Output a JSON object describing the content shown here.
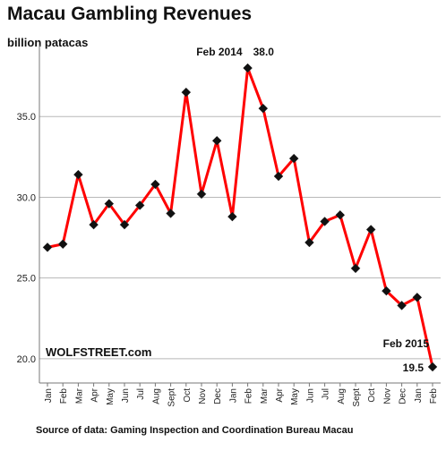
{
  "chart_data": {
    "type": "line",
    "title": "Macau Gambling Revenues",
    "ylabel": "billion patacas",
    "ylim": [
      18.5,
      39
    ],
    "yticks": [
      20.0,
      25.0,
      30.0,
      35.0
    ],
    "grid": true,
    "categories": [
      "Jan",
      "Feb",
      "Mar",
      "Apr",
      "May",
      "Jun",
      "Jul",
      "Aug",
      "Sept",
      "Oct",
      "Nov",
      "Dec",
      "Jan",
      "Feb",
      "Mar",
      "Apr",
      "May",
      "Jun",
      "Jul",
      "Aug",
      "Sept",
      "Oct",
      "Nov",
      "Dec",
      "Jan",
      "Feb"
    ],
    "series": [
      {
        "values": [
          26.9,
          27.1,
          31.4,
          28.3,
          29.6,
          28.3,
          29.5,
          30.8,
          29.0,
          36.5,
          30.2,
          33.5,
          28.8,
          38.0,
          35.5,
          31.3,
          32.4,
          27.2,
          28.5,
          28.9,
          25.6,
          28.0,
          24.2,
          23.3,
          23.8,
          19.5
        ],
        "color": "#ff0000"
      }
    ],
    "annotations": [
      {
        "label": "Feb 2014",
        "value_text": "38.0",
        "index": 13
      },
      {
        "label": "Feb 2015",
        "value_text": "19.5",
        "index": 25
      }
    ],
    "watermark": "WOLFSTREET.com",
    "source": "Source of data: Gaming Inspection and Coordination Bureau Macau"
  }
}
